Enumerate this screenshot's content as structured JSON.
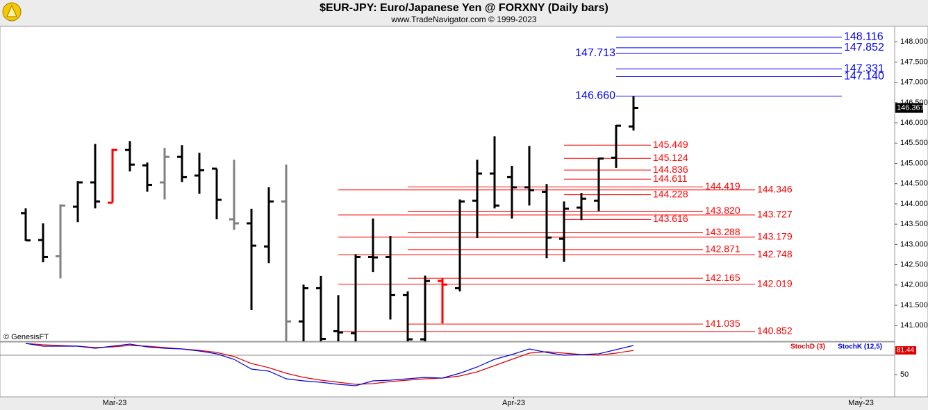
{
  "chart_data": [
    {
      "type": "ohlc",
      "title": "$EUR-JPY:  Euro/Japanese Yen @ FORXNY  (Daily bars)",
      "subtitle": "www.TradeNavigator.com © 1999-2023",
      "credit": "© GenesisFT",
      "x": [
        0,
        1,
        2,
        3,
        4,
        5,
        6,
        7,
        8,
        9,
        10,
        11,
        12,
        13,
        14,
        15,
        16,
        17,
        18,
        19,
        20,
        21,
        22,
        23,
        24,
        25,
        26,
        27,
        28,
        29,
        30,
        31,
        32,
        33,
        34,
        35
      ],
      "open": [
        143.77,
        143.11,
        142.71,
        143.93,
        144.53,
        144.03,
        145.33,
        144.95,
        144.53,
        145.16,
        144.7,
        144.87,
        143.62,
        143.52,
        142.95,
        144.06,
        141.1,
        141.92,
        140.86,
        140.81,
        142.69,
        142.69,
        141.75,
        140.66,
        142.1,
        141.92,
        144.08,
        144.75,
        144.66,
        144.41,
        144.3,
        143.14,
        143.91,
        144.08,
        145.14,
        145.91
      ],
      "high": [
        143.89,
        143.52,
        143.99,
        144.56,
        145.48,
        145.36,
        145.55,
        145.02,
        145.38,
        145.45,
        145.26,
        144.87,
        145.09,
        143.88,
        144.41,
        144.97,
        142.01,
        142.22,
        141.75,
        142.76,
        143.64,
        143.21,
        141.84,
        142.23,
        142.16,
        144.11,
        145.09,
        145.67,
        144.94,
        145.43,
        144.49,
        144.06,
        144.27,
        145.14,
        145.95,
        146.65
      ],
      "low": [
        143.09,
        142.56,
        142.16,
        143.55,
        143.89,
        144.03,
        144.8,
        144.3,
        144.11,
        144.54,
        144.25,
        143.62,
        143.36,
        141.38,
        142.54,
        140.55,
        140.55,
        140.55,
        140.55,
        140.55,
        142.32,
        141.15,
        140.55,
        140.55,
        141.05,
        141.84,
        143.16,
        143.89,
        143.64,
        143.96,
        142.66,
        142.57,
        143.6,
        143.82,
        144.89,
        145.81
      ],
      "close": [
        143.1,
        142.69,
        143.96,
        144.53,
        144.06,
        145.33,
        144.97,
        144.47,
        145.16,
        144.66,
        144.83,
        144.1,
        143.52,
        142.97,
        144.06,
        141.1,
        141.92,
        140.67,
        140.83,
        142.69,
        142.68,
        141.75,
        140.66,
        142.1,
        142.01,
        144.06,
        144.75,
        143.96,
        144.41,
        144.34,
        143.17,
        143.88,
        144.13,
        145.12,
        145.93,
        146.37
      ],
      "colors": [
        "#000000",
        "#000000",
        "#808080",
        "#000000",
        "#000000",
        "#ff0000",
        "#000000",
        "#000000",
        "#808080",
        "#000000",
        "#000000",
        "#000000",
        "#808080",
        "#000000",
        "#000000",
        "#808080",
        "#000000",
        "#000000",
        "#000000",
        "#000000",
        "#000000",
        "#000000",
        "#000000",
        "#000000",
        "#ff0000",
        "#000000",
        "#000000",
        "#000000",
        "#000000",
        "#000000",
        "#000000",
        "#000000",
        "#000000",
        "#000000",
        "#000000",
        "#000000"
      ],
      "xlim": [
        -1.48,
        50.04
      ],
      "ylim": [
        140.61,
        148.38
      ],
      "yticks": [
        {
          "value": 141,
          "label": "141.000"
        },
        {
          "value": 141.5,
          "label": "141.500"
        },
        {
          "value": 142,
          "label": "142.000"
        },
        {
          "value": 142.5,
          "label": "142.500"
        },
        {
          "value": 143,
          "label": "143.000"
        },
        {
          "value": 143.5,
          "label": "143.500"
        },
        {
          "value": 144,
          "label": "144.000"
        },
        {
          "value": 144.5,
          "label": "144.500"
        },
        {
          "value": 145,
          "label": "145.000"
        },
        {
          "value": 145.5,
          "label": "145.500"
        },
        {
          "value": 146,
          "label": "146.000"
        },
        {
          "value": 146.5,
          "label": "146.500"
        },
        {
          "value": 147,
          "label": "147.000"
        },
        {
          "value": 147.5,
          "label": "147.500"
        },
        {
          "value": 148,
          "label": "148.000"
        }
      ],
      "last_price": 146.367,
      "levels": [
        {
          "color": "#0000ff",
          "label_side": "right",
          "start": 34,
          "end": 47,
          "values": [
            148.116,
            147.852,
            147.331,
            147.14
          ],
          "value_labels": [
            "148.116",
            "147.852",
            "147.331",
            "147.140"
          ]
        },
        {
          "color": "#0000ff",
          "label_side": "left",
          "start": 34,
          "end": 47,
          "values": [
            147.713,
            146.66
          ],
          "value_labels": [
            "147.713",
            "146.660"
          ]
        },
        {
          "color": "#ff0000",
          "label_side": "right",
          "start": 31,
          "end": 36,
          "values": [
            145.449,
            145.124,
            144.836,
            144.611,
            144.228,
            143.616
          ],
          "value_labels": [
            "145.449",
            "145.124",
            "144.836",
            "144.611",
            "144.228",
            "143.616"
          ]
        },
        {
          "color": "#ff0000",
          "label_side": "right",
          "start": 22,
          "end": 39,
          "values": [
            144.419,
            143.82,
            143.288,
            142.871,
            142.165,
            141.035
          ],
          "value_labels": [
            "144.419",
            "143.820",
            "143.288",
            "142.871",
            "142.165",
            "141.035"
          ]
        },
        {
          "color": "#ff0000",
          "label_side": "right",
          "start": 18,
          "end": 42,
          "values": [
            144.346,
            143.727,
            143.179,
            142.748,
            142.019,
            140.852
          ],
          "value_labels": [
            "144.346",
            "143.727",
            "143.179",
            "142.748",
            "142.019",
            "140.852"
          ]
        }
      ]
    },
    {
      "type": "line",
      "x": [
        0,
        1,
        2,
        3,
        4,
        5,
        6,
        7,
        8,
        9,
        10,
        11,
        12,
        13,
        14,
        15,
        16,
        17,
        18,
        19,
        20,
        21,
        22,
        23,
        24,
        25,
        26,
        27,
        28,
        29,
        30,
        31,
        32,
        33,
        34,
        35
      ],
      "series": [
        {
          "name": "StochD (3)",
          "color": "#e00000",
          "values": [
            90.5,
            88.7,
            87.8,
            86.9,
            85.1,
            86,
            87.8,
            86.9,
            85.1,
            83.3,
            81.5,
            78.8,
            73.4,
            64.4,
            59,
            51.8,
            46.4,
            42.8,
            40.1,
            37.4,
            38.3,
            41,
            42.8,
            44.6,
            45.5,
            48.2,
            53.6,
            61.7,
            69.8,
            77.9,
            79.7,
            77.9,
            76.1,
            75.2,
            77.9,
            81.44
          ]
        },
        {
          "name": "StochK (12,5)",
          "color": "#0000e0",
          "values": [
            90.5,
            86.9,
            86.9,
            86.9,
            84.2,
            86.9,
            89.6,
            86,
            84.2,
            83.3,
            80.6,
            77,
            69.8,
            57.2,
            54.5,
            44.6,
            41.9,
            40.1,
            37.4,
            35.6,
            41.9,
            42.8,
            44.6,
            46.4,
            45.5,
            51.8,
            59.9,
            69.8,
            76.1,
            83.3,
            78.8,
            75.2,
            76.1,
            77,
            82.4,
            87.8
          ]
        }
      ],
      "xlim": [
        -1.48,
        50.04
      ],
      "xticks": [
        {
          "value": 5.12,
          "label": "Mar-23"
        },
        {
          "value": 28.1,
          "label": "Apr-23"
        },
        {
          "value": 48.1,
          "label": "May-23"
        }
      ],
      "ylim": [
        21.2,
        92.3
      ],
      "yticks": [
        50
      ]
    }
  ]
}
